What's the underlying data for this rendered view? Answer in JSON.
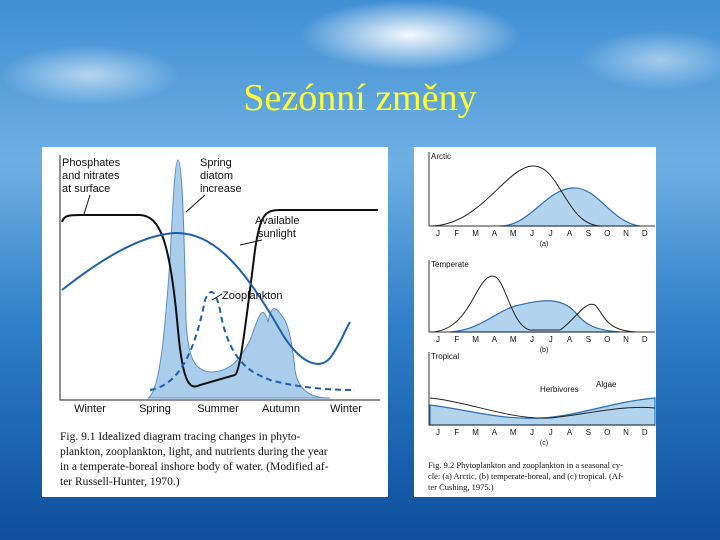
{
  "title": "Sezónní změny",
  "left_figure": {
    "annotations": [
      {
        "lines": [
          "Phosphates",
          "and nitrates",
          "at surface"
        ]
      },
      {
        "lines": [
          "Spring",
          "diatom",
          "increase"
        ]
      },
      {
        "lines": [
          "Available",
          "sunlight"
        ]
      },
      {
        "lines": [
          "Zooplankton"
        ]
      }
    ],
    "seasons": [
      "Winter",
      "Spring",
      "Summer",
      "Autumn",
      "Winter"
    ],
    "caption": [
      "Fig. 9.1  Idealized diagram tracing changes in phyto-",
      "plankton, zooplankton, light, and nutrients during the year",
      "in a temperate-boreal inshore body of water. (Modified af-",
      "ter Russell-Hunter, 1970.)"
    ]
  },
  "right_figure": {
    "months": [
      "J",
      "F",
      "M",
      "A",
      "M",
      "J",
      "J",
      "A",
      "S",
      "O",
      "N",
      "D"
    ],
    "panels": [
      {
        "name": "Arctic",
        "letter": "(a)"
      },
      {
        "name": "Temperate",
        "letter": "(b)"
      },
      {
        "name": "Tropical",
        "letter": "(c)"
      }
    ],
    "series_labels": [
      "Herbivores",
      "Algae"
    ],
    "caption": [
      "Fig. 9.2  Phytoplankton and zooplankton in a seasonal cy-",
      "cle: (a) Arctic, (b) temperate-boreal, and (c) tropical. (Af-",
      "ter Cushing, 1975.)"
    ]
  }
}
